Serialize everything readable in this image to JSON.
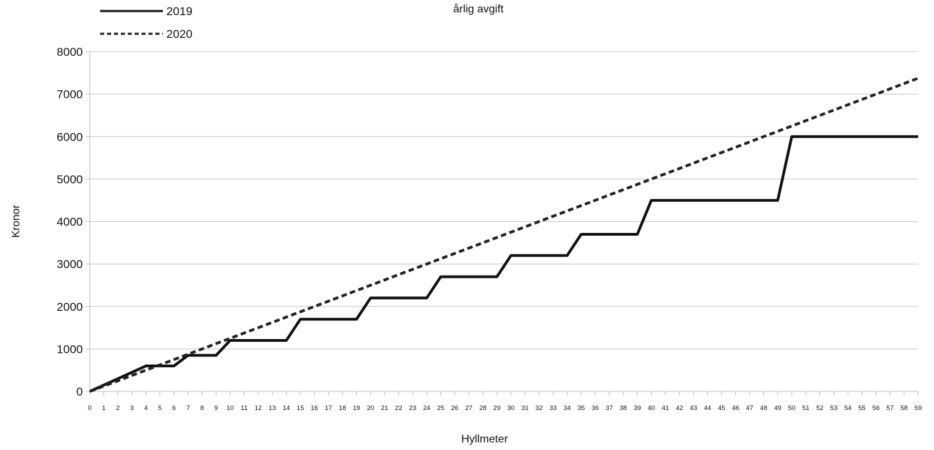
{
  "chart_data": {
    "type": "line",
    "title": "årlig avgift",
    "xlabel": "Hyllmeter",
    "ylabel": "Kronor",
    "ylim": [
      0,
      8000
    ],
    "yticks": [
      "0",
      "1000",
      "2000",
      "3000",
      "4000",
      "5000",
      "6000",
      "7000",
      "8000"
    ],
    "categories": [
      "0",
      "1",
      "2",
      "3",
      "4",
      "5",
      "6",
      "7",
      "8",
      "9",
      "10",
      "11",
      "12",
      "13",
      "14",
      "15",
      "16",
      "17",
      "18",
      "19",
      "20",
      "21",
      "22",
      "23",
      "24",
      "25",
      "26",
      "27",
      "28",
      "29",
      "30",
      "31",
      "32",
      "33",
      "34",
      "35",
      "36",
      "37",
      "38",
      "39",
      "40",
      "41",
      "42",
      "43",
      "44",
      "45",
      "46",
      "47",
      "48",
      "49",
      "50",
      "51",
      "52",
      "53",
      "54",
      "55",
      "56",
      "57",
      "58",
      "59"
    ],
    "grid": "horizontal",
    "legend_position": "top-left",
    "series": [
      {
        "name": "2019",
        "style": "solid",
        "color": "#111111",
        "values": [
          0,
          150,
          300,
          450,
          600,
          600,
          600,
          850,
          850,
          850,
          1200,
          1200,
          1200,
          1200,
          1200,
          1700,
          1700,
          1700,
          1700,
          1700,
          2200,
          2200,
          2200,
          2200,
          2200,
          2700,
          2700,
          2700,
          2700,
          2700,
          3200,
          3200,
          3200,
          3200,
          3200,
          3700,
          3700,
          3700,
          3700,
          3700,
          4500,
          4500,
          4500,
          4500,
          4500,
          4500,
          4500,
          4500,
          4500,
          4500,
          6000,
          6000,
          6000,
          6000,
          6000,
          6000,
          6000,
          6000,
          6000,
          6000
        ]
      },
      {
        "name": "2020",
        "style": "dashed",
        "color": "#222222",
        "values": [
          0,
          125,
          250,
          375,
          500,
          625,
          750,
          875,
          1000,
          1125,
          1250,
          1375,
          1500,
          1625,
          1750,
          1875,
          2000,
          2125,
          2250,
          2375,
          2500,
          2625,
          2750,
          2875,
          3000,
          3125,
          3250,
          3375,
          3500,
          3625,
          3750,
          3875,
          4000,
          4125,
          4250,
          4375,
          4500,
          4625,
          4750,
          4875,
          5000,
          5125,
          5250,
          5375,
          5500,
          5625,
          5750,
          5875,
          6000,
          6125,
          6250,
          6375,
          6500,
          6625,
          6750,
          6875,
          7000,
          7125,
          7250,
          7375
        ]
      }
    ]
  }
}
